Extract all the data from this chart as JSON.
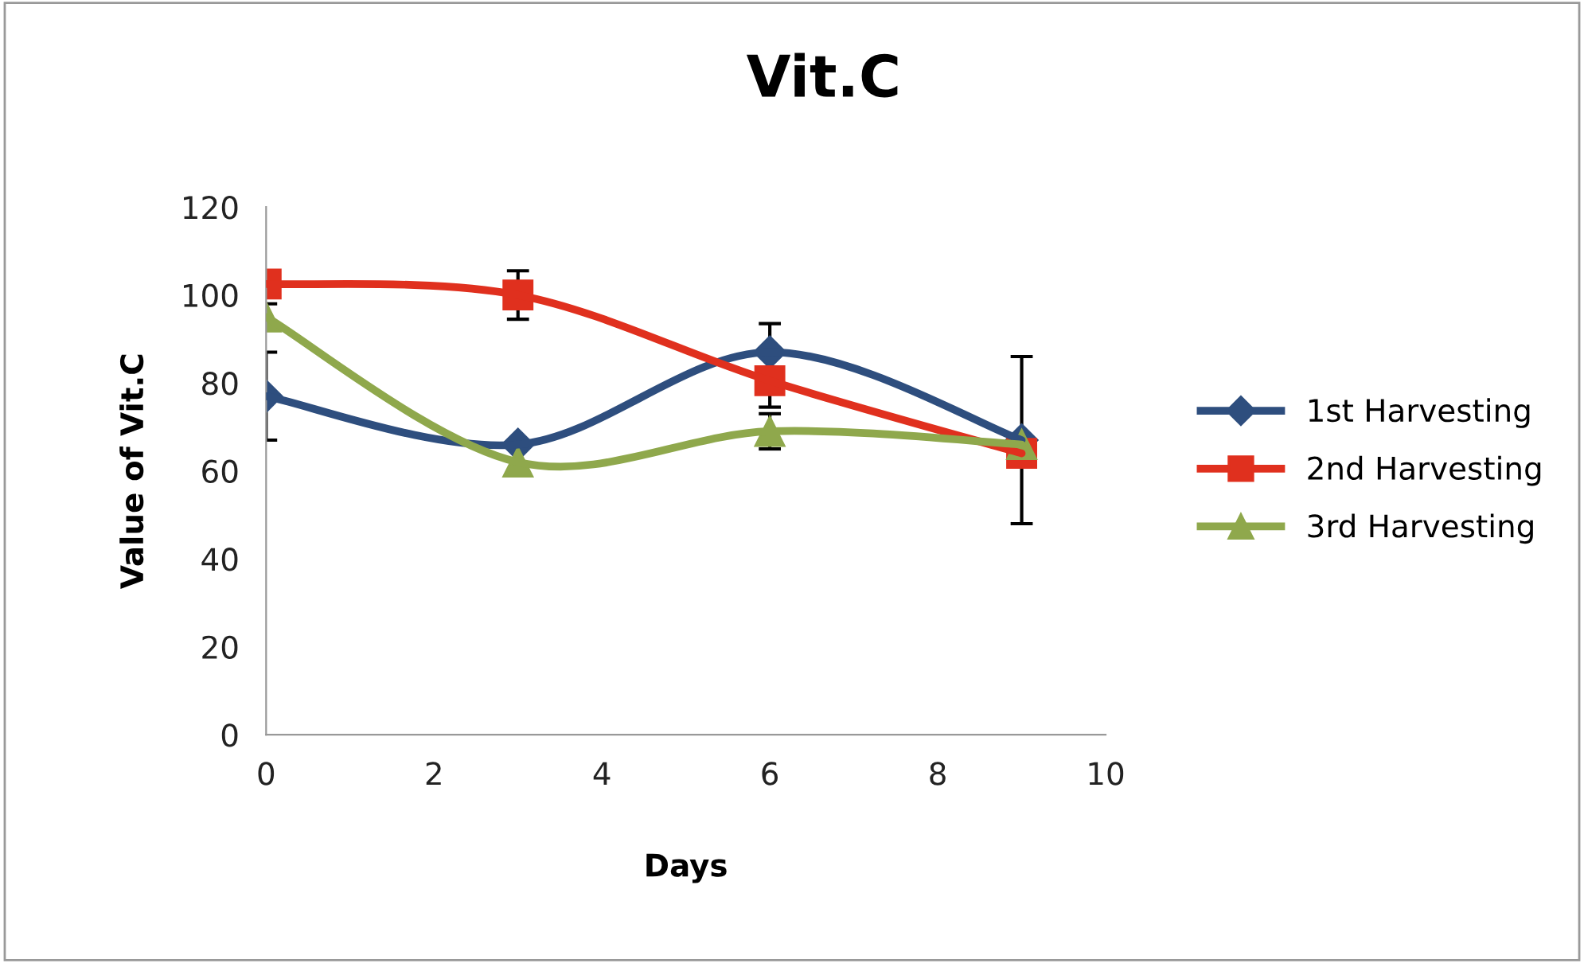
{
  "chart_data": {
    "type": "line",
    "title": "Vit.C",
    "xlabel": "Days",
    "ylabel": "Value of Vit.C",
    "x": [
      0,
      3,
      6,
      9
    ],
    "series": [
      {
        "name": "1st Harvesting",
        "color": "#2e4e7e",
        "marker": "diamond",
        "values": [
          77,
          66,
          87,
          67
        ],
        "errors": [
          10,
          null,
          6.5,
          19
        ]
      },
      {
        "name": "2nd Harvesting",
        "color": "#e0301e",
        "marker": "square",
        "values": [
          102.5,
          100,
          80.5,
          64
        ],
        "errors": [
          null,
          5.5,
          6,
          null
        ]
      },
      {
        "name": "3rd Harvesting",
        "color": "#8fa84c",
        "marker": "triangle",
        "values": [
          95,
          62,
          69,
          66
        ],
        "errors": [
          3,
          null,
          4,
          null
        ]
      }
    ],
    "xlim": [
      0,
      10
    ],
    "xticks": [
      0,
      2,
      4,
      6,
      8,
      10
    ],
    "ylim": [
      0,
      120
    ],
    "yticks": [
      0,
      20,
      40,
      60,
      80,
      100,
      120
    ],
    "grid": false,
    "legend": "right"
  }
}
